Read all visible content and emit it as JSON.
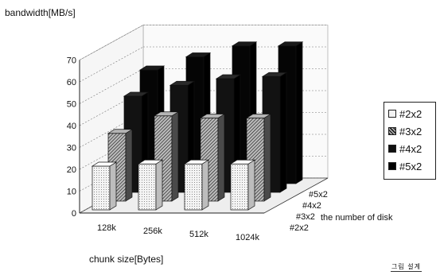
{
  "chart_data": {
    "type": "bar",
    "variant": "3d-grouped",
    "ylabel": "bandwidth[MB/s]",
    "xlabel": "chunk size[Bytes]",
    "zlabel": "the number of disk",
    "categories": [
      "128k",
      "256k",
      "512k",
      "1024k"
    ],
    "ylim": [
      0,
      70
    ],
    "yticks": [
      "0",
      "10",
      "20",
      "30",
      "40",
      "50",
      "60",
      "70"
    ],
    "grid": true,
    "legend_position": "right",
    "series": [
      {
        "name": "#2x2",
        "values": [
          20,
          21,
          21,
          21
        ]
      },
      {
        "name": "#3x2",
        "values": [
          31,
          39,
          38,
          38
        ]
      },
      {
        "name": "#4x2",
        "values": [
          44,
          49,
          52,
          53
        ]
      },
      {
        "name": "#5x2",
        "values": [
          52,
          58,
          63,
          63
        ]
      }
    ],
    "depth_labels": [
      "#2x2",
      "#3x2",
      "#4x2",
      "#5x2"
    ]
  },
  "colors": {
    "series_fill": [
      "#f2f2f2",
      "#8a8a8a",
      "#121212",
      "#050505"
    ],
    "series_side": [
      "#bdbdbd",
      "#4a4a4a",
      "#000000",
      "#000000"
    ],
    "series_top": [
      "#ffffff",
      "#b5b5b5",
      "#2a2a2a",
      "#1a1a1a"
    ]
  },
  "stamp_text": "그림 설계"
}
